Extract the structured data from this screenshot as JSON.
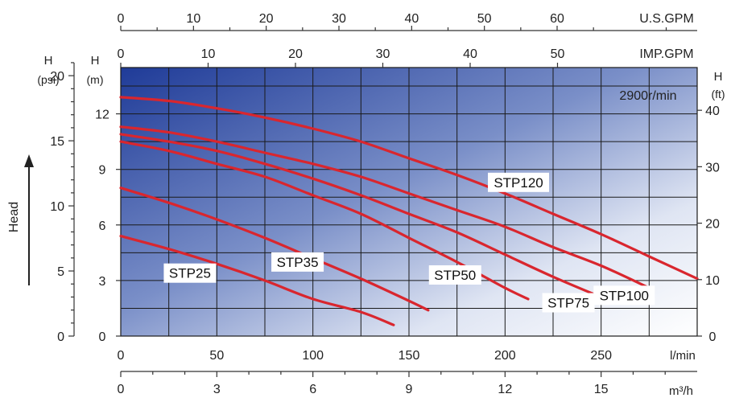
{
  "chart_data": {
    "type": "line",
    "speed_label": "2900r/min",
    "x_axis_units": "l/min",
    "x": [
      0,
      25,
      50,
      75,
      100,
      125,
      150,
      175,
      200,
      225,
      250,
      275,
      300
    ],
    "xlim": [
      0,
      300
    ],
    "y_axis_units": "m",
    "ylim": [
      0,
      14.5
    ],
    "series": [
      {
        "name": "STP25",
        "color": "#d9262e",
        "points": [
          [
            0,
            5.4
          ],
          [
            25,
            4.7
          ],
          [
            50,
            3.9
          ],
          [
            75,
            3.0
          ],
          [
            100,
            2.0
          ],
          [
            125,
            1.3
          ],
          [
            142,
            0.6
          ]
        ]
      },
      {
        "name": "STP35",
        "color": "#d9262e",
        "points": [
          [
            0,
            8.0
          ],
          [
            25,
            7.2
          ],
          [
            50,
            6.3
          ],
          [
            75,
            5.3
          ],
          [
            100,
            4.2
          ],
          [
            125,
            3.1
          ],
          [
            150,
            1.9
          ],
          [
            160,
            1.4
          ]
        ]
      },
      {
        "name": "STP50",
        "color": "#d9262e",
        "points": [
          [
            0,
            10.5
          ],
          [
            25,
            10.0
          ],
          [
            50,
            9.3
          ],
          [
            75,
            8.6
          ],
          [
            100,
            7.6
          ],
          [
            125,
            6.6
          ],
          [
            150,
            5.3
          ],
          [
            175,
            4.0
          ],
          [
            200,
            2.6
          ],
          [
            212,
            2.0
          ]
        ]
      },
      {
        "name": "STP75",
        "color": "#d9262e",
        "points": [
          [
            0,
            10.9
          ],
          [
            25,
            10.5
          ],
          [
            50,
            10.0
          ],
          [
            75,
            9.3
          ],
          [
            100,
            8.5
          ],
          [
            125,
            7.6
          ],
          [
            150,
            6.6
          ],
          [
            175,
            5.6
          ],
          [
            200,
            4.4
          ],
          [
            225,
            3.2
          ],
          [
            250,
            2.1
          ]
        ]
      },
      {
        "name": "STP100",
        "color": "#d9262e",
        "points": [
          [
            0,
            11.3
          ],
          [
            25,
            11.0
          ],
          [
            50,
            10.5
          ],
          [
            75,
            9.9
          ],
          [
            100,
            9.3
          ],
          [
            125,
            8.6
          ],
          [
            150,
            7.7
          ],
          [
            175,
            6.8
          ],
          [
            200,
            5.9
          ],
          [
            225,
            4.8
          ],
          [
            250,
            3.8
          ],
          [
            275,
            2.6
          ]
        ]
      },
      {
        "name": "STP120",
        "color": "#d9262e",
        "points": [
          [
            0,
            12.9
          ],
          [
            25,
            12.7
          ],
          [
            50,
            12.3
          ],
          [
            75,
            11.8
          ],
          [
            100,
            11.2
          ],
          [
            125,
            10.5
          ],
          [
            150,
            9.6
          ],
          [
            175,
            8.7
          ],
          [
            200,
            7.7
          ],
          [
            225,
            6.6
          ],
          [
            250,
            5.5
          ],
          [
            275,
            4.3
          ],
          [
            300,
            3.1
          ]
        ]
      }
    ],
    "curve_labels": [
      {
        "text": "STP25",
        "x": 36,
        "y": 3.4
      },
      {
        "text": "STP35",
        "x": 92,
        "y": 4.0
      },
      {
        "text": "STP50",
        "x": 174,
        "y": 3.3
      },
      {
        "text": "STP75",
        "x": 233,
        "y": 1.8
      },
      {
        "text": "STP100",
        "x": 262,
        "y": 2.2
      },
      {
        "text": "STP120",
        "x": 207,
        "y": 8.3
      }
    ],
    "axes": {
      "bottom": {
        "label": "l/min",
        "ticks": [
          0,
          50,
          100,
          150,
          200,
          250
        ]
      },
      "bottom2": {
        "label": "m³/h",
        "ticks": [
          0,
          3,
          6,
          9,
          12,
          15
        ]
      },
      "top_us": {
        "label": "U.S.GPM",
        "ticks": [
          0,
          10,
          20,
          30,
          40,
          50,
          60
        ]
      },
      "top_imp": {
        "label": "IMP.GPM",
        "ticks": [
          0,
          10,
          20,
          30,
          40,
          50
        ]
      },
      "left_m": {
        "title": "H",
        "unit": "(m)",
        "ticks": [
          0,
          3,
          6,
          9,
          12
        ]
      },
      "left_psi": {
        "title": "H",
        "unit": "(psi)",
        "ticks": [
          0,
          5,
          10,
          15,
          20
        ]
      },
      "right_ft": {
        "title": "H",
        "unit": "(ft)",
        "ticks": [
          0,
          10,
          20,
          30,
          40
        ]
      },
      "head_label": "Head"
    },
    "grid": true
  }
}
